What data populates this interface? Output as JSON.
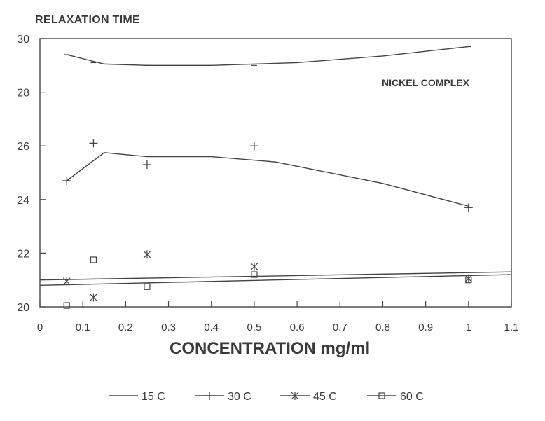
{
  "chart_data": {
    "type": "line",
    "ylabel": "RELAXATION TIME",
    "xlabel": "CONCENTRATION mg/ml",
    "annotation": "NICKEL COMPLEX",
    "xlim": [
      0,
      1.1
    ],
    "ylim": [
      20,
      30
    ],
    "xticks": [
      "0",
      "0.1",
      "0.2",
      "0.3",
      "0.4",
      "0.5",
      "0.6",
      "0.7",
      "0.8",
      "0.9",
      "1",
      "1.1"
    ],
    "yticks": [
      "20",
      "22",
      "24",
      "26",
      "28",
      "30"
    ],
    "legend_position": "bottom",
    "grid": false,
    "series": [
      {
        "name": "15 C",
        "marker": "none",
        "points": [
          [
            0.0625,
            29.4
          ],
          [
            0.125,
            29.1
          ],
          [
            0.25,
            29.0
          ],
          [
            0.5,
            29.0
          ],
          [
            1.0,
            29.7
          ]
        ],
        "fit": [
          [
            0.0625,
            29.4
          ],
          [
            0.15,
            29.05
          ],
          [
            0.25,
            29.0
          ],
          [
            0.4,
            29.0
          ],
          [
            0.6,
            29.1
          ],
          [
            0.8,
            29.35
          ],
          [
            1.0,
            29.7
          ]
        ]
      },
      {
        "name": "30 C",
        "marker": "plus",
        "points": [
          [
            0.0625,
            24.7
          ],
          [
            0.125,
            26.1
          ],
          [
            0.25,
            25.3
          ],
          [
            0.5,
            26.0
          ],
          [
            1.0,
            23.7
          ]
        ],
        "fit": [
          [
            0.0625,
            24.7
          ],
          [
            0.15,
            25.75
          ],
          [
            0.25,
            25.6
          ],
          [
            0.4,
            25.6
          ],
          [
            0.55,
            25.4
          ],
          [
            0.8,
            24.6
          ],
          [
            1.0,
            23.75
          ]
        ]
      },
      {
        "name": "45 C",
        "marker": "asterisk",
        "points": [
          [
            0.0625,
            20.95
          ],
          [
            0.125,
            20.35
          ],
          [
            0.25,
            21.95
          ],
          [
            0.5,
            21.5
          ],
          [
            1.0,
            21.05
          ]
        ],
        "fit": [
          [
            0,
            21.0
          ],
          [
            1.1,
            21.3
          ]
        ]
      },
      {
        "name": "60 C",
        "marker": "square",
        "points": [
          [
            0.0625,
            20.05
          ],
          [
            0.125,
            21.75
          ],
          [
            0.25,
            20.75
          ],
          [
            0.5,
            21.2
          ],
          [
            1.0,
            21.0
          ]
        ],
        "fit": [
          [
            0,
            20.8
          ],
          [
            1.1,
            21.2
          ]
        ]
      }
    ]
  }
}
